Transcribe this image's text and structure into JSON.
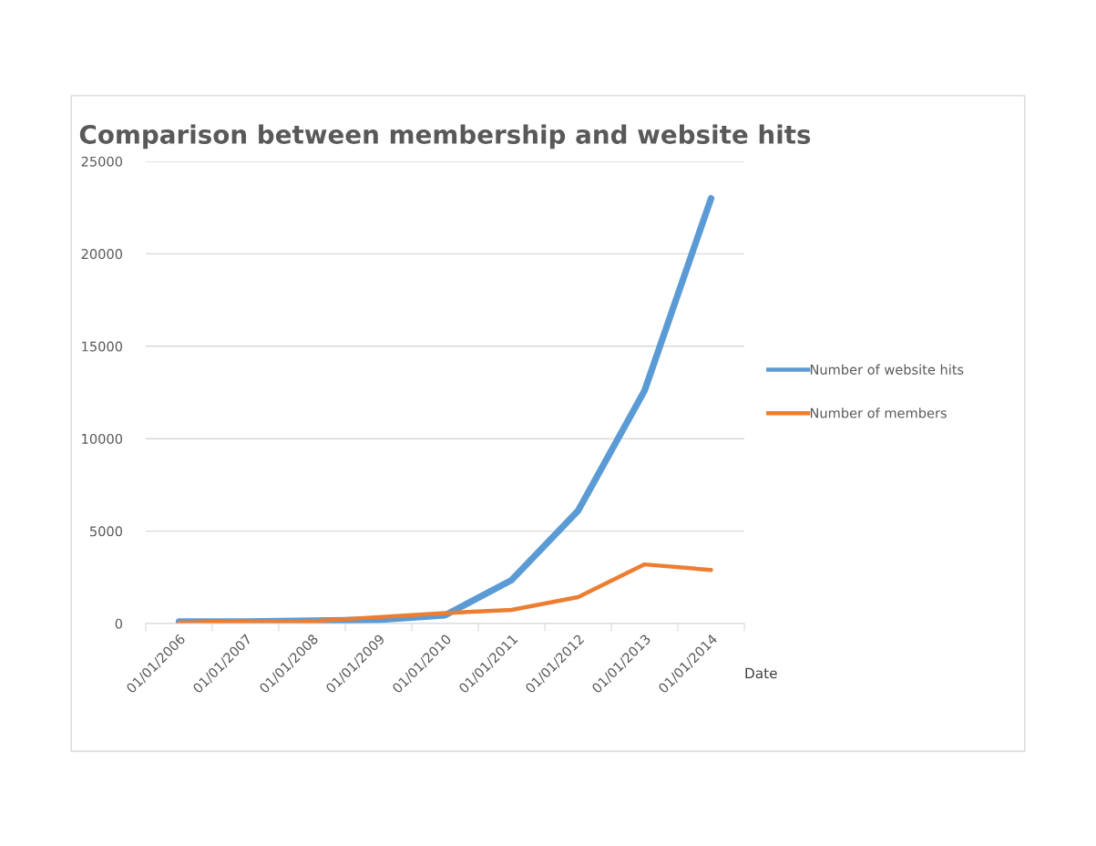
{
  "chart_data": {
    "type": "line",
    "title": "Comparison between membership and website hits",
    "xlabel": "Date",
    "categories": [
      "01/01/2006",
      "01/01/2007",
      "01/01/2008",
      "01/01/2009",
      "01/01/2010",
      "01/01/2011",
      "01/01/2012",
      "01/01/2013",
      "01/01/2014"
    ],
    "series": [
      {
        "name": "Number of website hits",
        "color": "#5b9bd5",
        "values": [
          100,
          100,
          150,
          200,
          450,
          2350,
          6100,
          12600,
          23000
        ]
      },
      {
        "name": "Number of members",
        "color": "#ed7d31",
        "values": [
          50,
          120,
          120,
          350,
          570,
          740,
          1430,
          3200,
          2900
        ]
      }
    ],
    "ylim": [
      0,
      25000
    ],
    "yticks": [
      0,
      5000,
      10000,
      15000,
      20000,
      25000
    ],
    "grid": "y",
    "legend": "right",
    "marker": "none",
    "line_style": "solid"
  }
}
